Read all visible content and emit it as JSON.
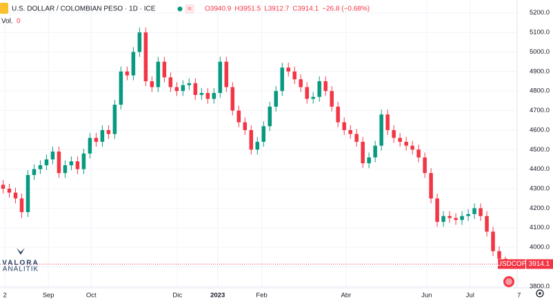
{
  "chart_data": {
    "type": "candlestick",
    "title": "U.S. DOLLAR / COLOMBIAN PESO · 1D · ICE",
    "legend_values": [
      "O3940.9",
      "H3951.5",
      "L3912.7",
      "C3914.1",
      "−26.8 (−0.68%)"
    ],
    "volume_label": "Vol.",
    "volume_value": 0,
    "symbol": "USDCOP",
    "watermark": [
      "VALORA",
      "ANALITIK"
    ],
    "up_color": "#089981",
    "down_color": "#f23645",
    "x": [
      0,
      1,
      2,
      3,
      4,
      5,
      6,
      7,
      8,
      9,
      10,
      11,
      12,
      13,
      14,
      15,
      16,
      17,
      18,
      19,
      20,
      21,
      22,
      23,
      24,
      25,
      26,
      27,
      28,
      29,
      30,
      31,
      32,
      33,
      34,
      35,
      36,
      37,
      38,
      39,
      40,
      41,
      42,
      43,
      44,
      45,
      46,
      47,
      48,
      49,
      50,
      51,
      52,
      53,
      54,
      55,
      56,
      57,
      58,
      59,
      60,
      61,
      62,
      63,
      64,
      65,
      66,
      67,
      68,
      69,
      70,
      71,
      72,
      73,
      74,
      75,
      76,
      77,
      78,
      79,
      80,
      81
    ],
    "open": [
      4320,
      4300,
      4280,
      4250,
      4180,
      4370,
      4400,
      4420,
      4450,
      4490,
      4380,
      4420,
      4440,
      4400,
      4480,
      4560,
      4540,
      4600,
      4580,
      4730,
      4900,
      4880,
      5000,
      5100,
      4850,
      4820,
      4950,
      4870,
      4820,
      4800,
      4830,
      4840,
      4780,
      4790,
      4760,
      4790,
      4950,
      4820,
      4700,
      4640,
      4600,
      4500,
      4540,
      4620,
      4720,
      4800,
      4920,
      4900,
      4860,
      4820,
      4760,
      4770,
      4850,
      4800,
      4720,
      4640,
      4600,
      4580,
      4540,
      4430,
      4460,
      4520,
      4680,
      4600,
      4560,
      4540,
      4520,
      4500,
      4460,
      4380,
      4250,
      4130,
      4160,
      4150,
      4140,
      4160,
      4170,
      4200,
      4160,
      4080,
      3980,
      3940.9
    ],
    "high": [
      4345,
      4325,
      4305,
      4275,
      4395,
      4425,
      4445,
      4475,
      4515,
      4515,
      4445,
      4465,
      4465,
      4505,
      4585,
      4585,
      4625,
      4625,
      4755,
      4925,
      4925,
      5025,
      5125,
      5125,
      4875,
      4975,
      4975,
      4895,
      4845,
      4855,
      4865,
      4865,
      4815,
      4815,
      4815,
      4975,
      4975,
      4845,
      4725,
      4665,
      4625,
      4565,
      4645,
      4745,
      4825,
      4945,
      4945,
      4925,
      4885,
      4845,
      4795,
      4875,
      4875,
      4825,
      4745,
      4665,
      4625,
      4605,
      4565,
      4485,
      4545,
      4705,
      4705,
      4625,
      4585,
      4565,
      4545,
      4525,
      4485,
      4405,
      4275,
      4185,
      4185,
      4175,
      4185,
      4195,
      4225,
      4225,
      4185,
      4105,
      4005,
      3951.5
    ],
    "low": [
      4275,
      4255,
      4225,
      4150,
      4155,
      4345,
      4375,
      4395,
      4425,
      4355,
      4355,
      4395,
      4375,
      4375,
      4455,
      4515,
      4515,
      4555,
      4555,
      4705,
      4855,
      4855,
      4975,
      4825,
      4795,
      4795,
      4845,
      4795,
      4775,
      4775,
      4805,
      4755,
      4755,
      4735,
      4735,
      4765,
      4795,
      4675,
      4615,
      4575,
      4475,
      4475,
      4515,
      4595,
      4695,
      4775,
      4875,
      4835,
      4795,
      4735,
      4735,
      4745,
      4775,
      4695,
      4615,
      4575,
      4555,
      4515,
      4405,
      4405,
      4435,
      4495,
      4575,
      4535,
      4515,
      4495,
      4475,
      4435,
      4355,
      4225,
      4105,
      4105,
      4125,
      4115,
      4115,
      4135,
      4145,
      4135,
      4055,
      3955,
      3915.9,
      3912.7
    ],
    "close": [
      4300,
      4280,
      4250,
      4180,
      4370,
      4400,
      4420,
      4450,
      4490,
      4380,
      4420,
      4440,
      4400,
      4480,
      4560,
      4540,
      4600,
      4580,
      4730,
      4900,
      4880,
      5000,
      5100,
      4850,
      4820,
      4950,
      4870,
      4820,
      4800,
      4830,
      4840,
      4780,
      4790,
      4760,
      4790,
      4950,
      4820,
      4700,
      4640,
      4600,
      4500,
      4540,
      4620,
      4720,
      4800,
      4920,
      4900,
      4860,
      4820,
      4760,
      4770,
      4850,
      4800,
      4720,
      4640,
      4600,
      4580,
      4540,
      4430,
      4460,
      4520,
      4680,
      4600,
      4560,
      4540,
      4520,
      4500,
      4460,
      4380,
      4250,
      4130,
      4160,
      4150,
      4140,
      4160,
      4170,
      4200,
      4160,
      4080,
      3980,
      3940.9,
      3914.1
    ],
    "xlim": [
      -0.5,
      84
    ],
    "xticks": [
      {
        "value": 0.3,
        "label": "2"
      },
      {
        "value": 7.3,
        "label": "Sep"
      },
      {
        "value": 14.2,
        "label": "Oct"
      },
      {
        "value": 28.1,
        "label": "Dic"
      },
      {
        "value": 34.6,
        "label": "2023"
      },
      {
        "value": 41.7,
        "label": "Feb"
      },
      {
        "value": 55.3,
        "label": "Abr"
      },
      {
        "value": 68.3,
        "label": "Jun"
      },
      {
        "value": 75.3,
        "label": "Jul"
      },
      {
        "value": 83.2,
        "label": "7"
      }
    ],
    "ylim": [
      3750,
      5266
    ],
    "yticks": [
      {
        "value": 3800,
        "label": "3800.0"
      },
      {
        "value": 3900,
        "label": "3900.0"
      },
      {
        "value": 4000,
        "label": "4000.0"
      },
      {
        "value": 4100,
        "label": "4100.0"
      },
      {
        "value": 4200,
        "label": "4200.0"
      },
      {
        "value": 4300,
        "label": "4300.0"
      },
      {
        "value": 4400,
        "label": "4400.0"
      },
      {
        "value": 4500,
        "label": "4500.0"
      },
      {
        "value": 4600,
        "label": "4600.0"
      },
      {
        "value": 4700,
        "label": "4700.0"
      },
      {
        "value": 4800,
        "label": "4800.0"
      },
      {
        "value": 4900,
        "label": "4900.0"
      },
      {
        "value": 5000,
        "label": "5000.0"
      },
      {
        "value": 5100,
        "label": "5100.0"
      },
      {
        "value": 5200,
        "label": "5200.0"
      }
    ],
    "grid": true
  }
}
